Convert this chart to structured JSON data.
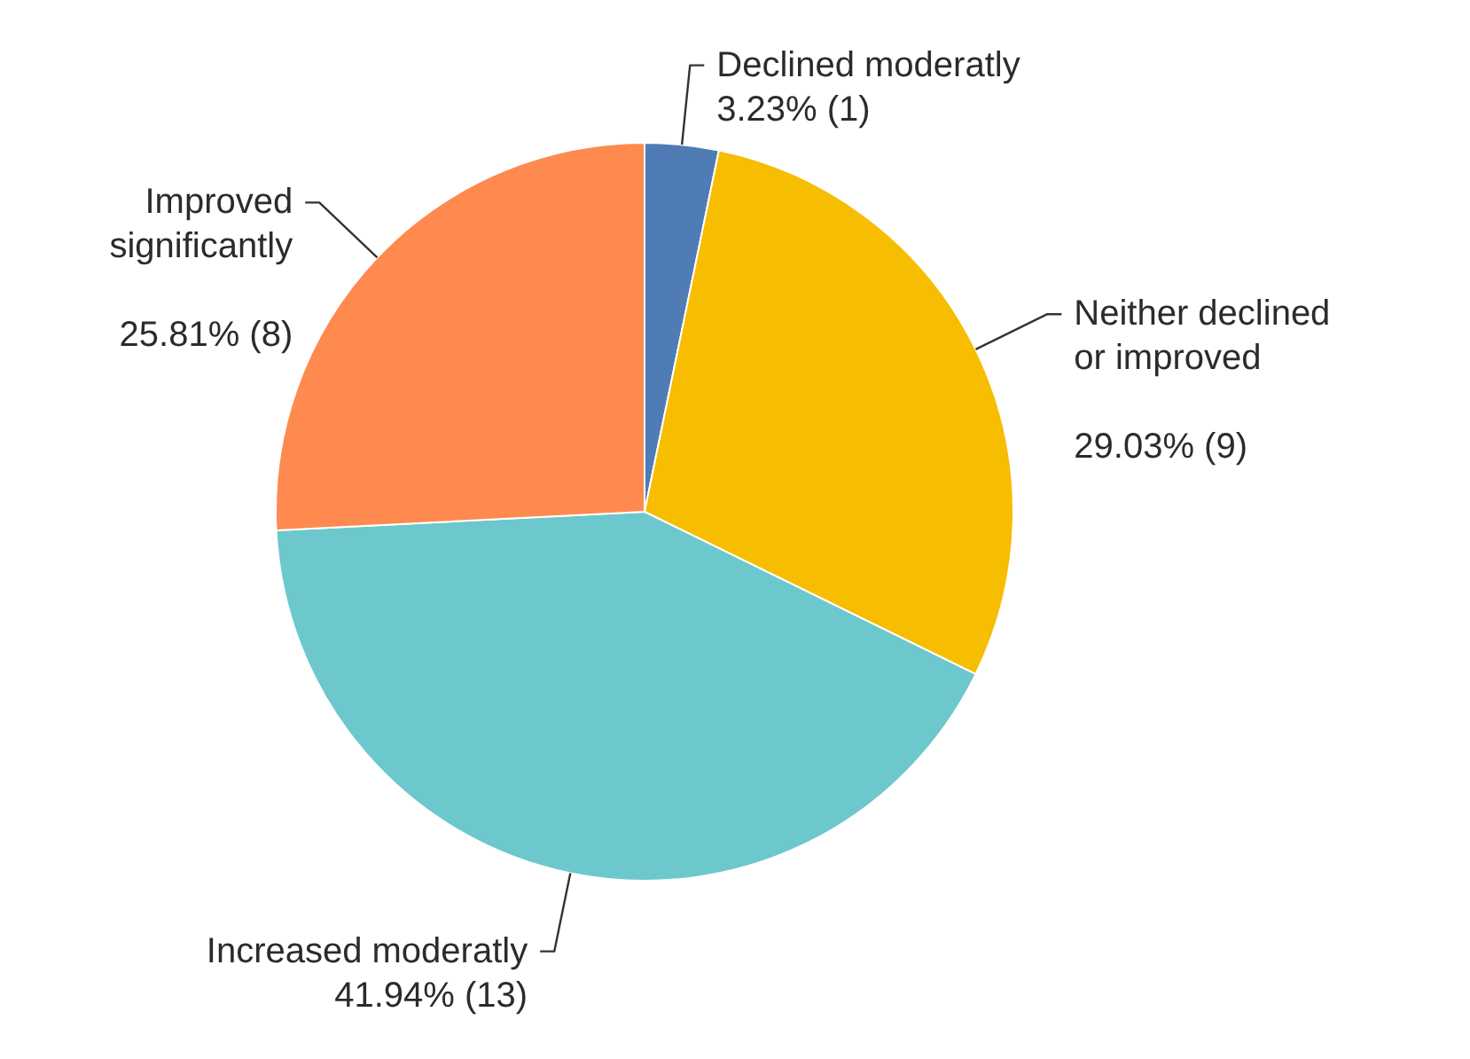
{
  "chart_data": {
    "type": "pie",
    "categories": [
      "Declined moderatly",
      "Neither declined or improved",
      "Increased moderatly",
      "Improved significantly"
    ],
    "values": [
      3.23,
      29.03,
      41.94,
      25.81
    ],
    "value_labels": [
      "3.23% (1)",
      "29.03% (9)",
      "41.94% (13)",
      "25.81% (8)"
    ],
    "colors": [
      "#4f7cb5",
      "#f7bd00",
      "#6cc8cc",
      "#fe8a4f"
    ]
  }
}
